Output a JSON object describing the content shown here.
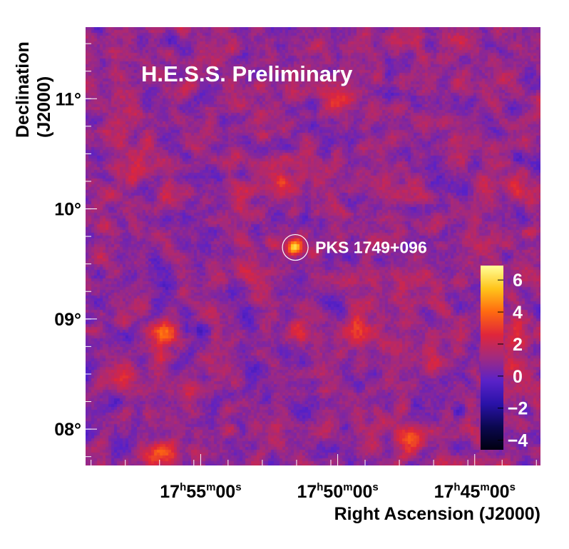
{
  "chart_data": {
    "type": "heatmap",
    "title": "H.E.S.S. Preliminary",
    "xlabel": "Right Ascension (J2000)",
    "ylabel": "Declination (J2000)",
    "ylabel_lines": [
      "Declination",
      "(J2000)"
    ],
    "x_ticks": [
      {
        "h": "17",
        "m": "55",
        "s": "00",
        "ra_deg": 268.75
      },
      {
        "h": "17",
        "m": "50",
        "s": "00",
        "ra_deg": 267.5
      },
      {
        "h": "17",
        "m": "45",
        "s": "00",
        "ra_deg": 266.25
      }
    ],
    "y_ticks": [
      {
        "label": "11°",
        "value": 11
      },
      {
        "label": "10°",
        "value": 10
      },
      {
        "label": "09°",
        "value": 9
      },
      {
        "label": "08°",
        "value": 8
      }
    ],
    "xlim_ra_deg": [
      269.8,
      265.65
    ],
    "ylim": [
      7.67,
      11.65
    ],
    "colorbar": {
      "range": [
        -4.6,
        6.9
      ],
      "ticks": [
        {
          "label": "6",
          "value": 6
        },
        {
          "label": "4",
          "value": 4
        },
        {
          "label": "2",
          "value": 2
        },
        {
          "label": "0",
          "value": 0
        },
        {
          "label": "−2",
          "value": -2
        },
        {
          "label": "−4",
          "value": -4
        }
      ],
      "colors": [
        "#000010",
        "#0b0850",
        "#2a12a8",
        "#5a22c8",
        "#a12a80",
        "#e0263a",
        "#ff6a10",
        "#ffc41a",
        "#ffff9a"
      ]
    },
    "source": {
      "name": "PKS 1749+096",
      "ra_deg": 267.887,
      "dec_deg": 9.65,
      "peak_significance": 6.6
    },
    "hotspots": [
      {
        "ra_deg": 266.83,
        "dec_deg": 7.9,
        "value": 4.0
      },
      {
        "ra_deg": 269.1,
        "dec_deg": 7.75,
        "value": 3.8
      },
      {
        "ra_deg": 267.99,
        "dec_deg": 10.25,
        "value": 3.5
      },
      {
        "ra_deg": 267.49,
        "dec_deg": 11.0,
        "value": 3.0
      },
      {
        "ra_deg": 269.08,
        "dec_deg": 8.9,
        "value": 3.0
      },
      {
        "ra_deg": 267.32,
        "dec_deg": 8.9,
        "value": 2.6
      },
      {
        "ra_deg": 266.46,
        "dec_deg": 11.55,
        "value": 2.6
      },
      {
        "ra_deg": 269.5,
        "dec_deg": 10.65,
        "value": 2.6
      },
      {
        "ra_deg": 269.45,
        "dec_deg": 8.5,
        "value": 2.4
      },
      {
        "ra_deg": 265.86,
        "dec_deg": 8.8,
        "value": 2.4
      },
      {
        "ra_deg": 267.85,
        "dec_deg": 8.85,
        "value": 2.2
      },
      {
        "ra_deg": 268.4,
        "dec_deg": 10.1,
        "value": 2.2
      },
      {
        "ra_deg": 269.2,
        "dec_deg": 10.4,
        "value": 2.0
      },
      {
        "ra_deg": 266.62,
        "dec_deg": 8.6,
        "value": 2.2
      },
      {
        "ra_deg": 265.86,
        "dec_deg": 10.15,
        "value": 2.0
      }
    ]
  }
}
